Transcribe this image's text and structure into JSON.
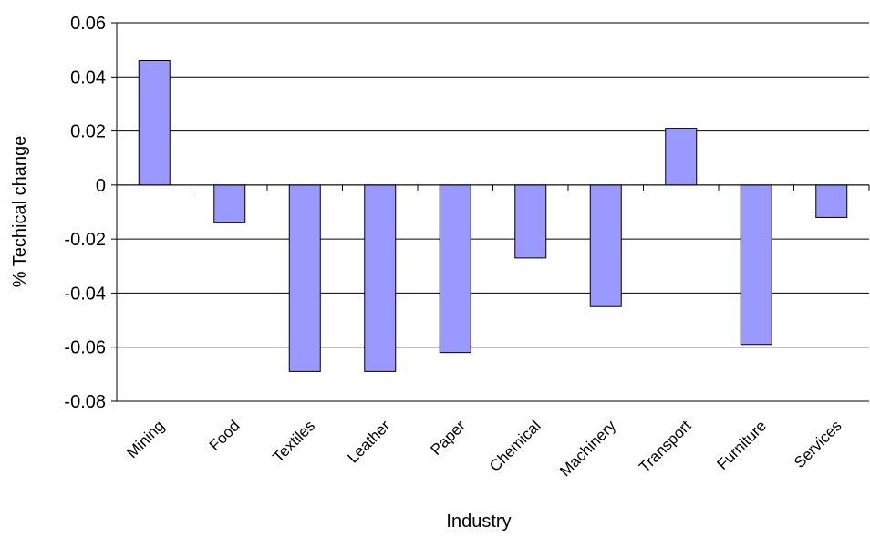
{
  "chart_data": {
    "type": "bar",
    "x_label": "Industry",
    "y_label": "% Techical change",
    "categories": [
      "Mining",
      "Food",
      "Textiles",
      "Leather",
      "Paper",
      "Chemical",
      "Machinery",
      "Transport",
      "Furniture",
      "Services"
    ],
    "values": [
      0.046,
      -0.014,
      -0.069,
      -0.069,
      -0.062,
      -0.027,
      -0.045,
      0.021,
      -0.059,
      -0.012
    ],
    "color": "#9999ff",
    "ylim": [
      -0.08,
      0.06
    ],
    "yticks": [
      -0.08,
      -0.06,
      -0.04,
      -0.02,
      0,
      0.02,
      0.04,
      0.06
    ],
    "grid": true
  }
}
